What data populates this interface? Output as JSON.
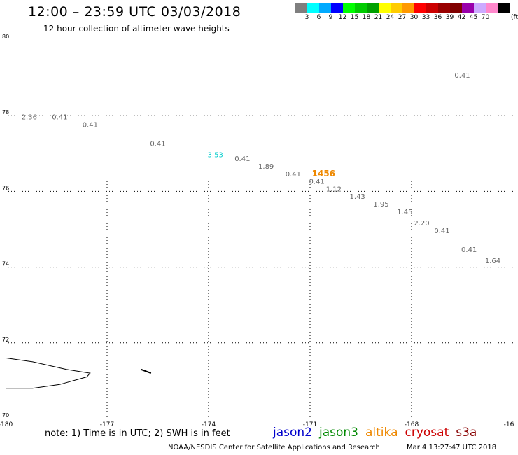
{
  "header": {
    "title": "12:00 – 23:59 UTC 03/03/2018",
    "subtitle": "12 hour collection of altimeter wave heights"
  },
  "scale": {
    "colors": [
      "#7f7f7f",
      "#00ffff",
      "#00aaff",
      "#0000ff",
      "#00ff00",
      "#00cc00",
      "#00a000",
      "#ffff00",
      "#ffcc00",
      "#ff9900",
      "#ff0000",
      "#cc0000",
      "#990000",
      "#800000",
      "#9900aa",
      "#ccaaff",
      "#ff88cc",
      "#000000"
    ],
    "labels": [
      "3",
      "6",
      "9",
      "12",
      "15",
      "18",
      "21",
      "24",
      "27",
      "30",
      "33",
      "36",
      "39",
      "42",
      "45",
      "70"
    ],
    "unit": "(ft)"
  },
  "chart_data": {
    "type": "scatter",
    "xlim": [
      -180,
      -165
    ],
    "ylim": [
      70,
      80
    ],
    "x_ticks": [
      "-180",
      "-177",
      "-174",
      "-171",
      "-168",
      "-16"
    ],
    "y_ticks": [
      "80",
      "78",
      "76",
      "74",
      "72",
      "70"
    ],
    "grid": true,
    "series": [
      {
        "name": "jason2",
        "color": "#0000cc",
        "points": []
      },
      {
        "name": "jason3",
        "color": "#008800",
        "points": []
      },
      {
        "name": "altika",
        "color": "#ee8800",
        "points": [
          {
            "lon": -170.6,
            "lat": 76.4,
            "label": "1456"
          }
        ]
      },
      {
        "name": "cryosat",
        "color": "#cc0000",
        "points": []
      },
      {
        "name": "s3a",
        "color": "#880000",
        "points": [
          {
            "lon": -166.5,
            "lat": 79.0,
            "label": "0.41"
          },
          {
            "lon": -179.3,
            "lat": 77.9,
            "label": "2.36"
          },
          {
            "lon": -178.4,
            "lat": 77.9,
            "label": "0.41"
          },
          {
            "lon": -177.5,
            "lat": 77.7,
            "label": "0.41"
          },
          {
            "lon": -175.5,
            "lat": 77.2,
            "label": "0.41"
          },
          {
            "lon": -173.0,
            "lat": 76.8,
            "label": "0.41"
          },
          {
            "lon": -172.3,
            "lat": 76.6,
            "label": "1.89"
          },
          {
            "lon": -171.5,
            "lat": 76.4,
            "label": "0.41"
          },
          {
            "lon": -170.8,
            "lat": 76.2,
            "label": "0.41"
          },
          {
            "lon": -170.3,
            "lat": 76.0,
            "label": "1.12"
          },
          {
            "lon": -169.6,
            "lat": 75.8,
            "label": "1.43"
          },
          {
            "lon": -168.9,
            "lat": 75.6,
            "label": "1.95"
          },
          {
            "lon": -168.2,
            "lat": 75.4,
            "label": "1.45"
          },
          {
            "lon": -167.7,
            "lat": 75.1,
            "label": "2.20"
          },
          {
            "lon": -167.1,
            "lat": 74.9,
            "label": "0.41"
          },
          {
            "lon": -166.3,
            "lat": 74.4,
            "label": "0.41"
          },
          {
            "lon": -165.6,
            "lat": 74.1,
            "label": "1.64"
          }
        ]
      },
      {
        "name": "cyan",
        "color": "#00cccc",
        "points": [
          {
            "lon": -173.8,
            "lat": 76.9,
            "label": "3.53"
          }
        ]
      }
    ],
    "coastlines": [
      {
        "name": "siberia-coast",
        "points": [
          [
            -180,
            71.6
          ],
          [
            -179.2,
            71.5
          ],
          [
            -178.2,
            71.3
          ],
          [
            -177.5,
            71.2
          ],
          [
            -177.6,
            71.1
          ],
          [
            -178.4,
            70.9
          ],
          [
            -179.2,
            70.8
          ],
          [
            -180,
            70.8
          ]
        ]
      },
      {
        "name": "small-island",
        "points": [
          [
            -176.0,
            71.3
          ],
          [
            -175.7,
            71.2
          ]
        ]
      }
    ]
  },
  "footer": {
    "note": "note: 1) Time is in UTC; 2) SWH is in feet",
    "satellites": [
      {
        "label": "jason2",
        "color": "#0000cc"
      },
      {
        "label": "jason3",
        "color": "#008800"
      },
      {
        "label": "altika",
        "color": "#ee8800"
      },
      {
        "label": "cryosat",
        "color": "#cc0000"
      },
      {
        "label": "s3a",
        "color": "#880000"
      }
    ],
    "credit": "NOAA/NESDIS Center for Satellite Applications and Research",
    "timestamp": "Mar  4 13:27:47 UTC 2018"
  }
}
